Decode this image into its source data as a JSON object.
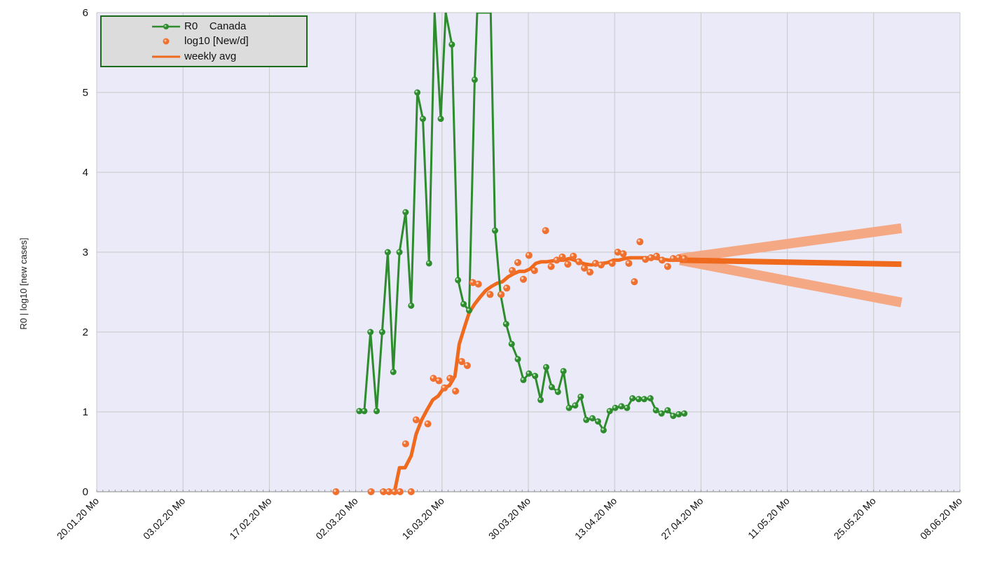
{
  "chart_data": {
    "type": "line",
    "ylabel": "R0  |  log10 [new cases]",
    "ylim": [
      0,
      6
    ],
    "y_ticks": [
      "0",
      "1",
      "2",
      "3",
      "4",
      "5",
      "6"
    ],
    "x_ticks": [
      "20.01.20 Mo",
      "03.02.20 Mo",
      "17.02.20 Mo",
      "02.03.20 Mo",
      "16.03.20 Mo",
      "30.03.20 Mo",
      "13.04.20 Mo",
      "27.04.20 Mo",
      "11.05.20 Mo",
      "25.05.20 Mo",
      "08.06.20 Mo"
    ],
    "x_range_days": [
      0,
      140
    ],
    "grid": true,
    "legend_position": "top-left",
    "legend": [
      {
        "label": "R0    Canada",
        "symbol": "line-marker",
        "color": "#2e8b2e"
      },
      {
        "label": "log10 [New/d]",
        "symbol": "dot",
        "color": "#f07030"
      },
      {
        "label": "weekly avg",
        "symbol": "line",
        "color": "#f06a1e"
      }
    ],
    "colors": {
      "r0": "#2e8b2e",
      "cases": "#f07030",
      "avg": "#f06a1e",
      "band": "#f5a884",
      "plot_bg": "#eaeaf9",
      "grid": "#c8c8c8"
    },
    "series": [
      {
        "name": "R0    Canada",
        "points": [
          [
            42.6,
            1.01
          ],
          [
            43.4,
            1.01
          ],
          [
            44.4,
            2.0
          ],
          [
            45.4,
            1.01
          ],
          [
            46.3,
            2.0
          ],
          [
            47.2,
            3.0
          ],
          [
            48.1,
            1.5
          ],
          [
            49.1,
            3.0
          ],
          [
            50.1,
            3.5
          ],
          [
            51.0,
            2.33
          ],
          [
            52.0,
            5.0
          ],
          [
            52.9,
            4.67
          ],
          [
            53.9,
            2.86
          ],
          [
            54.8,
            6.0
          ],
          [
            55.8,
            4.67
          ],
          [
            56.6,
            6.0
          ],
          [
            57.6,
            5.6
          ],
          [
            58.6,
            2.65
          ],
          [
            59.5,
            2.35
          ],
          [
            60.4,
            2.27
          ],
          [
            61.3,
            5.16
          ],
          [
            61.7,
            6.0
          ],
          [
            63.9,
            6.0
          ],
          [
            64.6,
            3.27
          ],
          [
            65.5,
            2.47
          ],
          [
            66.4,
            2.1
          ],
          [
            67.3,
            1.85
          ],
          [
            68.3,
            1.66
          ],
          [
            69.2,
            1.4
          ],
          [
            70.1,
            1.48
          ],
          [
            71.1,
            1.45
          ],
          [
            72.0,
            1.15
          ],
          [
            72.9,
            1.56
          ],
          [
            73.8,
            1.31
          ],
          [
            74.8,
            1.25
          ],
          [
            75.7,
            1.51
          ],
          [
            76.6,
            1.05
          ],
          [
            77.6,
            1.08
          ],
          [
            78.5,
            1.19
          ],
          [
            79.4,
            0.9
          ],
          [
            80.4,
            0.92
          ],
          [
            81.3,
            0.88
          ],
          [
            82.2,
            0.77
          ],
          [
            83.2,
            1.01
          ],
          [
            84.1,
            1.05
          ],
          [
            85.1,
            1.07
          ],
          [
            86.0,
            1.05
          ],
          [
            86.9,
            1.17
          ],
          [
            87.9,
            1.16
          ],
          [
            88.8,
            1.16
          ],
          [
            89.8,
            1.17
          ],
          [
            90.7,
            1.02
          ],
          [
            91.6,
            0.98
          ],
          [
            92.6,
            1.02
          ],
          [
            93.5,
            0.95
          ],
          [
            94.4,
            0.97
          ],
          [
            95.3,
            0.98
          ]
        ]
      },
      {
        "name": "log10 [New/d]",
        "points": [
          [
            38.8,
            0.0
          ],
          [
            44.5,
            0.0
          ],
          [
            46.5,
            0.0
          ],
          [
            47.4,
            0.0
          ],
          [
            48.3,
            0.0
          ],
          [
            49.2,
            0.0
          ],
          [
            50.1,
            0.6
          ],
          [
            51.0,
            0.0
          ],
          [
            51.8,
            0.9
          ],
          [
            53.7,
            0.85
          ],
          [
            54.6,
            1.42
          ],
          [
            55.5,
            1.39
          ],
          [
            56.4,
            1.3
          ],
          [
            57.3,
            1.42
          ],
          [
            58.2,
            1.26
          ],
          [
            59.2,
            1.63
          ],
          [
            60.1,
            1.58
          ],
          [
            61.0,
            2.62
          ],
          [
            61.9,
            2.6
          ],
          [
            63.8,
            2.47
          ],
          [
            65.6,
            2.47
          ],
          [
            66.5,
            2.55
          ],
          [
            67.4,
            2.77
          ],
          [
            68.3,
            2.87
          ],
          [
            69.2,
            2.66
          ],
          [
            70.1,
            2.96
          ],
          [
            71.0,
            2.77
          ],
          [
            72.8,
            3.27
          ],
          [
            73.7,
            2.82
          ],
          [
            74.6,
            2.9
          ],
          [
            75.5,
            2.94
          ],
          [
            76.4,
            2.85
          ],
          [
            77.3,
            2.95
          ],
          [
            78.2,
            2.88
          ],
          [
            79.1,
            2.8
          ],
          [
            80.0,
            2.75
          ],
          [
            80.9,
            2.86
          ],
          [
            81.8,
            2.84
          ],
          [
            83.6,
            2.86
          ],
          [
            84.5,
            3.0
          ],
          [
            85.4,
            2.98
          ],
          [
            86.3,
            2.86
          ],
          [
            87.2,
            2.63
          ],
          [
            88.1,
            3.13
          ],
          [
            89.0,
            2.91
          ],
          [
            89.9,
            2.93
          ],
          [
            90.8,
            2.95
          ],
          [
            91.7,
            2.9
          ],
          [
            92.6,
            2.82
          ],
          [
            93.5,
            2.92
          ],
          [
            94.4,
            2.93
          ],
          [
            95.3,
            2.92
          ]
        ]
      },
      {
        "name": "weekly avg",
        "points": [
          [
            47.0,
            0.0
          ],
          [
            48.3,
            0.0
          ],
          [
            49.1,
            0.3
          ],
          [
            50.0,
            0.3
          ],
          [
            51.0,
            0.45
          ],
          [
            51.8,
            0.72
          ],
          [
            52.7,
            0.9
          ],
          [
            53.6,
            1.03
          ],
          [
            54.5,
            1.15
          ],
          [
            55.4,
            1.2
          ],
          [
            56.3,
            1.3
          ],
          [
            57.2,
            1.33
          ],
          [
            58.1,
            1.45
          ],
          [
            58.8,
            1.85
          ],
          [
            59.6,
            2.05
          ],
          [
            60.4,
            2.24
          ],
          [
            61.3,
            2.35
          ],
          [
            62.2,
            2.44
          ],
          [
            63.1,
            2.52
          ],
          [
            64.0,
            2.57
          ],
          [
            64.9,
            2.61
          ],
          [
            65.8,
            2.63
          ],
          [
            66.7,
            2.69
          ],
          [
            67.6,
            2.73
          ],
          [
            68.5,
            2.76
          ],
          [
            69.4,
            2.76
          ],
          [
            70.3,
            2.79
          ],
          [
            71.2,
            2.86
          ],
          [
            72.1,
            2.88
          ],
          [
            73.0,
            2.88
          ],
          [
            73.9,
            2.89
          ],
          [
            74.8,
            2.9
          ],
          [
            75.7,
            2.9
          ],
          [
            76.6,
            2.92
          ],
          [
            77.5,
            2.9
          ],
          [
            78.4,
            2.87
          ],
          [
            79.3,
            2.85
          ],
          [
            80.2,
            2.84
          ],
          [
            81.1,
            2.85
          ],
          [
            82.0,
            2.86
          ],
          [
            82.9,
            2.87
          ],
          [
            83.8,
            2.9
          ],
          [
            84.7,
            2.9
          ],
          [
            85.6,
            2.92
          ],
          [
            86.5,
            2.93
          ],
          [
            87.4,
            2.93
          ],
          [
            88.3,
            2.93
          ],
          [
            89.2,
            2.93
          ],
          [
            90.1,
            2.93
          ],
          [
            91.0,
            2.92
          ],
          [
            91.9,
            2.91
          ],
          [
            92.8,
            2.9
          ],
          [
            93.7,
            2.9
          ],
          [
            94.6,
            2.9
          ]
        ]
      },
      {
        "name": "",
        "role": "forecast-center",
        "points": [
          [
            94.6,
            2.9
          ],
          [
            115.0,
            2.87
          ],
          [
            130.5,
            2.85
          ]
        ]
      },
      {
        "name": "",
        "role": "forecast-upper",
        "points": [
          [
            94.6,
            2.92
          ],
          [
            130.5,
            3.3
          ]
        ]
      },
      {
        "name": "",
        "role": "forecast-lower",
        "points": [
          [
            94.6,
            2.9
          ],
          [
            130.5,
            2.37
          ]
        ]
      }
    ]
  }
}
